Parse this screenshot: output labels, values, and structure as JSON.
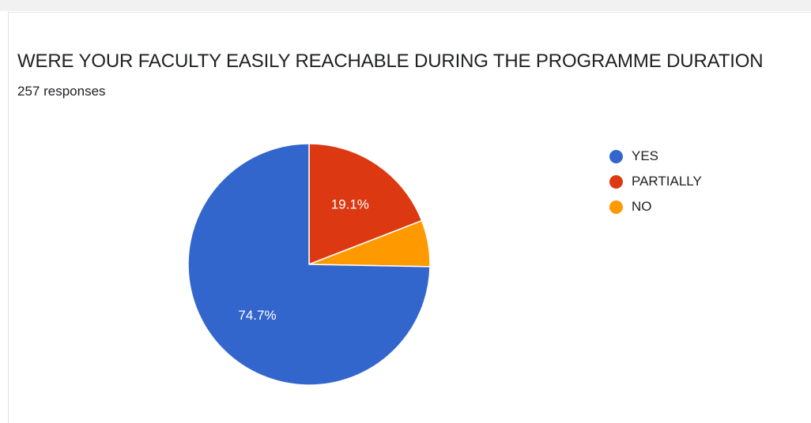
{
  "chart_data": {
    "type": "pie",
    "title": "WERE YOUR FACULTY EASILY REACHABLE DURING THE PROGRAMME DURATION",
    "subtitle": "257 responses",
    "categories": [
      "YES",
      "PARTIALLY",
      "NO"
    ],
    "values": [
      74.7,
      19.1,
      6.2
    ],
    "colors": [
      "#3366cc",
      "#dc3912",
      "#ff9900"
    ],
    "slice_labels": [
      "74.7%",
      "19.1%",
      ""
    ],
    "legend_position": "right"
  }
}
